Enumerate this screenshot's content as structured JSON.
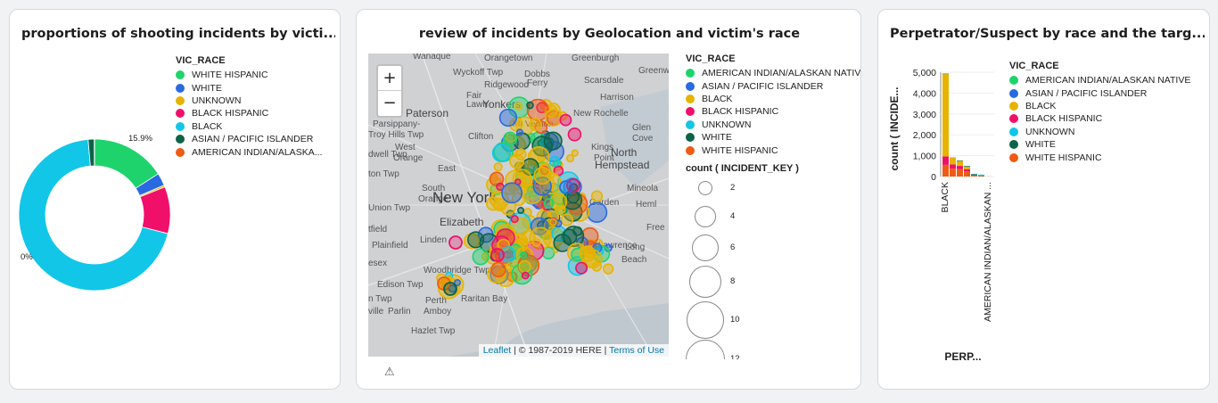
{
  "cards": {
    "donut": {
      "title": "proportions of shooting incidents by victi..."
    },
    "map": {
      "title": "review of incidents by Geolocation and victim's race",
      "warning_icon": "warning-icon"
    },
    "bar": {
      "title": "Perpetrator/Suspect by race and the targ..."
    }
  },
  "donut_legend": {
    "title": "VIC_RACE",
    "items": [
      {
        "label": "WHITE HISPANIC",
        "color": "#1fd36c"
      },
      {
        "label": "WHITE",
        "color": "#2a6ae0"
      },
      {
        "label": "UNKNOWN",
        "color": "#e6b400"
      },
      {
        "label": "BLACK HISPANIC",
        "color": "#f0106a"
      },
      {
        "label": "BLACK",
        "color": "#12c6e8"
      },
      {
        "label": "ASIAN / PACIFIC ISLANDER",
        "color": "#0d6248"
      },
      {
        "label": "AMERICAN INDIAN/ALASKA...",
        "color": "#ef5a14"
      }
    ]
  },
  "map_legend": {
    "title": "VIC_RACE",
    "items": [
      {
        "label": "AMERICAN INDIAN/ALASKAN NATIVE",
        "color": "#1fd36c"
      },
      {
        "label": "ASIAN / PACIFIC ISLANDER",
        "color": "#2a6ae0"
      },
      {
        "label": "BLACK",
        "color": "#e6b400"
      },
      {
        "label": "BLACK HISPANIC",
        "color": "#f0106a"
      },
      {
        "label": "UNKNOWN",
        "color": "#12c6e8"
      },
      {
        "label": "WHITE",
        "color": "#0d6248"
      },
      {
        "label": "WHITE HISPANIC",
        "color": "#ef5a14"
      }
    ],
    "size_title": "count ( INCIDENT_KEY )",
    "sizes": [
      "2",
      "4",
      "6",
      "8",
      "10",
      "12"
    ]
  },
  "bar_legend": {
    "title": "VIC_RACE",
    "items": [
      {
        "label": "AMERICAN INDIAN/ALASKAN NATIVE",
        "color": "#1fd36c"
      },
      {
        "label": "ASIAN / PACIFIC ISLANDER",
        "color": "#2a6ae0"
      },
      {
        "label": "BLACK",
        "color": "#e6b400"
      },
      {
        "label": "BLACK HISPANIC",
        "color": "#f0106a"
      },
      {
        "label": "UNKNOWN",
        "color": "#12c6e8"
      },
      {
        "label": "WHITE",
        "color": "#0d6248"
      },
      {
        "label": "WHITE HISPANIC",
        "color": "#ef5a14"
      }
    ]
  },
  "map": {
    "zoom_in": "+",
    "zoom_out": "−",
    "attribution_link1": "Leaflet",
    "attribution_text": " | © 1987-2019 HERE | ",
    "attribution_link2": "Terms of Use",
    "places": [
      {
        "text": "Wanaque",
        "size": "s"
      },
      {
        "text": "Orangetown",
        "size": "s"
      },
      {
        "text": "Greenburgh",
        "size": "s"
      },
      {
        "text": "Wyckoff Twp",
        "size": "s"
      },
      {
        "text": "Dobbs",
        "size": "s"
      },
      {
        "text": "Ferry",
        "size": "s"
      },
      {
        "text": "Scarsdale",
        "size": "s"
      },
      {
        "text": "Greenw",
        "size": "s"
      },
      {
        "text": "Ridgewood",
        "size": "s"
      },
      {
        "text": "Harrison",
        "size": "s"
      },
      {
        "text": "Fair",
        "size": "s"
      },
      {
        "text": "Lawn",
        "size": "s"
      },
      {
        "text": "Yonkers",
        "size": "m"
      },
      {
        "text": "Paterson",
        "size": "m"
      },
      {
        "text": "New Rochelle",
        "size": "s"
      },
      {
        "text": "Mt Vernon",
        "size": "s"
      },
      {
        "text": "Parsippany-",
        "size": "s"
      },
      {
        "text": "Troy Hills Twp",
        "size": "s"
      },
      {
        "text": "Clifton",
        "size": "s"
      },
      {
        "text": "Glen",
        "size": "s"
      },
      {
        "text": "Cove",
        "size": "s"
      },
      {
        "text": "West",
        "size": "s"
      },
      {
        "text": "Orange",
        "size": "s"
      },
      {
        "text": "Kings",
        "size": "s"
      },
      {
        "text": "Point",
        "size": "s"
      },
      {
        "text": "North",
        "size": "m"
      },
      {
        "text": "Hempstead",
        "size": "m"
      },
      {
        "text": "East",
        "size": "s"
      },
      {
        "text": "dwell Twp",
        "size": "s"
      },
      {
        "text": "ton Twp",
        "size": "s"
      },
      {
        "text": "South",
        "size": "s"
      },
      {
        "text": "Orange",
        "size": "s"
      },
      {
        "text": "New York",
        "size": "b"
      },
      {
        "text": "Mineola",
        "size": "s"
      },
      {
        "text": "Union Twp",
        "size": "s"
      },
      {
        "text": "Garden",
        "size": "s"
      },
      {
        "text": "Heml",
        "size": "s"
      },
      {
        "text": "Elizabeth",
        "size": "m"
      },
      {
        "text": "tfield",
        "size": "s"
      },
      {
        "text": "Linden",
        "size": "s"
      },
      {
        "text": "Free",
        "size": "s"
      },
      {
        "text": "Plainfield",
        "size": "s"
      },
      {
        "text": "Lawrence",
        "size": "s"
      },
      {
        "text": "Long",
        "size": "s"
      },
      {
        "text": "Beach",
        "size": "s"
      },
      {
        "text": "esex",
        "size": "s"
      },
      {
        "text": "Woodbridge Twp",
        "size": "s"
      },
      {
        "text": "Edison Twp",
        "size": "s"
      },
      {
        "text": "Perth",
        "size": "s"
      },
      {
        "text": "Amboy",
        "size": "s"
      },
      {
        "text": "Raritan Bay",
        "size": "s"
      },
      {
        "text": "n Twp",
        "size": "s"
      },
      {
        "text": "ville",
        "size": "s"
      },
      {
        "text": "Parlin",
        "size": "s"
      },
      {
        "text": "Hazlet Twp",
        "size": "s"
      }
    ]
  },
  "donut": {
    "slices": [
      {
        "label": "WHITE HISPANIC",
        "value": 15.9,
        "color": "#1fd36c"
      },
      {
        "label": "WHITE",
        "value": 2.7,
        "color": "#2a6ae0"
      },
      {
        "label": "UNKNOWN",
        "value": 0.4,
        "color": "#e6b400"
      },
      {
        "label": "BLACK HISPANIC",
        "value": 10.0,
        "color": "#f0106a"
      },
      {
        "label": "BLACK",
        "value": 69.7,
        "color": "#12c6e8"
      },
      {
        "label": "ASIAN / PACIFIC ISLANDER",
        "value": 1.3,
        "color": "#0d6248"
      },
      {
        "label": "AMERICAN INDIAN/ALASKA...",
        "value": 0.05,
        "color": "#ef5a14"
      }
    ],
    "label_right": "15.9%",
    "label_left": "0%"
  },
  "chart_data": {
    "type": "bar",
    "stacked": true,
    "title": "Perpetrator/Suspect by race and the targ...",
    "ylabel": "count ( INCIDE...",
    "xlabel": "PERP...",
    "ylim": [
      0,
      5000
    ],
    "yticks": [
      "5,000",
      "4,000",
      "3,000",
      "2,000",
      "1,000",
      "0"
    ],
    "categories": [
      "BLACK",
      "c2",
      "c3",
      "c4",
      "c5",
      "c6",
      "AMERICAN INDIAN/ALASKAN ..."
    ],
    "category_labels": [
      "BLACK",
      "",
      "",
      "",
      "",
      "",
      "AMERICAN INDIAN/ALASKAN ..."
    ],
    "series": [
      {
        "name": "WHITE HISPANIC",
        "color": "#ef5a14",
        "values": [
          560,
          380,
          360,
          250,
          30,
          10,
          2
        ]
      },
      {
        "name": "BLACK HISPANIC",
        "color": "#f0106a",
        "values": [
          400,
          200,
          150,
          100,
          10,
          5,
          1
        ]
      },
      {
        "name": "BLACK",
        "color": "#e6b400",
        "values": [
          3950,
          320,
          240,
          120,
          15,
          8,
          1
        ]
      },
      {
        "name": "WHITE",
        "color": "#0d6248",
        "values": [
          20,
          10,
          20,
          30,
          60,
          30,
          1
        ]
      },
      {
        "name": "UNKNOWN",
        "color": "#12c6e8",
        "values": [
          10,
          5,
          5,
          5,
          5,
          40,
          1
        ]
      }
    ]
  }
}
